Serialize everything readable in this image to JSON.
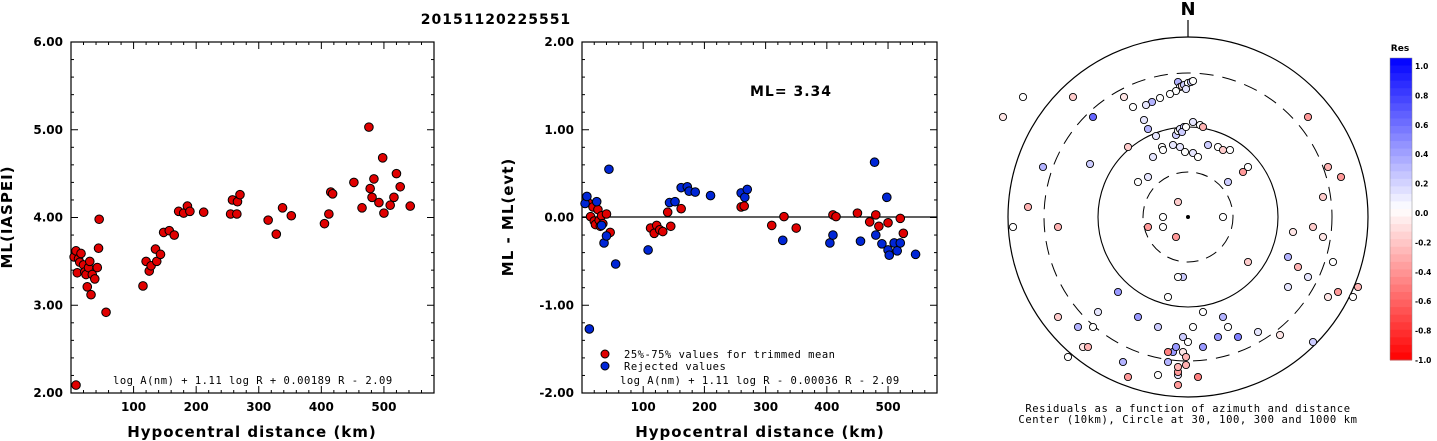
{
  "event_id": "20151120225551",
  "chart_data": [
    {
      "type": "scatter",
      "ylabel": "ML(IASPEI)",
      "xlabel": "Hypocentral distance (km)",
      "xlim": [
        0,
        580
      ],
      "ylim": [
        2.0,
        6.0
      ],
      "xticks": [
        100,
        200,
        300,
        400,
        500
      ],
      "yticks": [
        "2.00",
        "3.00",
        "4.00",
        "5.00",
        "6.00"
      ],
      "formula": "log A(nm) + 1.11 log R + 0.00189 R - 2.09",
      "points": [
        [
          5,
          3.55
        ],
        [
          8,
          3.62
        ],
        [
          10,
          3.37
        ],
        [
          12,
          3.53
        ],
        [
          14,
          3.49
        ],
        [
          16,
          3.59
        ],
        [
          20,
          3.46
        ],
        [
          22,
          3.38
        ],
        [
          24,
          3.35
        ],
        [
          26,
          3.21
        ],
        [
          28,
          3.43
        ],
        [
          30,
          3.5
        ],
        [
          32,
          3.12
        ],
        [
          34,
          3.35
        ],
        [
          38,
          3.3
        ],
        [
          42,
          3.43
        ],
        [
          44,
          3.65
        ],
        [
          45,
          3.98
        ],
        [
          56,
          2.92
        ],
        [
          8,
          2.09
        ],
        [
          115,
          3.22
        ],
        [
          120,
          3.5
        ],
        [
          125,
          3.39
        ],
        [
          128,
          3.45
        ],
        [
          135,
          3.64
        ],
        [
          137,
          3.5
        ],
        [
          143,
          3.58
        ],
        [
          148,
          3.83
        ],
        [
          157,
          3.85
        ],
        [
          165,
          3.8
        ],
        [
          172,
          4.07
        ],
        [
          180,
          4.05
        ],
        [
          186,
          4.13
        ],
        [
          190,
          4.07
        ],
        [
          212,
          4.06
        ],
        [
          255,
          4.04
        ],
        [
          258,
          4.2
        ],
        [
          265,
          4.04
        ],
        [
          266,
          4.18
        ],
        [
          270,
          4.26
        ],
        [
          315,
          3.97
        ],
        [
          328,
          3.81
        ],
        [
          338,
          4.11
        ],
        [
          352,
          4.02
        ],
        [
          405,
          3.93
        ],
        [
          412,
          4.04
        ],
        [
          415,
          4.29
        ],
        [
          418,
          4.27
        ],
        [
          452,
          4.4
        ],
        [
          465,
          4.11
        ],
        [
          476,
          5.03
        ],
        [
          478,
          4.33
        ],
        [
          481,
          4.23
        ],
        [
          484,
          4.44
        ],
        [
          492,
          4.17
        ],
        [
          498,
          4.68
        ],
        [
          500,
          4.05
        ],
        [
          510,
          4.14
        ],
        [
          516,
          4.23
        ],
        [
          520,
          4.5
        ],
        [
          526,
          4.35
        ],
        [
          542,
          4.13
        ]
      ]
    },
    {
      "type": "scatter",
      "ylabel": "ML - ML(evt)",
      "xlabel": "Hypocentral distance (km)",
      "xlim": [
        0,
        580
      ],
      "ylim": [
        -2.0,
        2.0
      ],
      "xticks": [
        100,
        200,
        300,
        400,
        500
      ],
      "yticks": [
        "-2.00",
        "-1.00",
        "0.00",
        "1.00",
        "2.00"
      ],
      "ml_label": "ML= 3.34",
      "legend": [
        "25%-75% values for trimmed mean",
        "Rejected values"
      ],
      "formula": "log A(nm) + 1.11 log R - 0.00036 R - 2.09",
      "accepted": [
        [
          10,
          0.17
        ],
        [
          14,
          0.01
        ],
        [
          18,
          0.12
        ],
        [
          20,
          -0.04
        ],
        [
          22,
          -0.08
        ],
        [
          26,
          0.09
        ],
        [
          28,
          -0.03
        ],
        [
          30,
          -0.1
        ],
        [
          32,
          0.02
        ],
        [
          34,
          -0.07
        ],
        [
          40,
          0.04
        ],
        [
          46,
          -0.17
        ],
        [
          112,
          -0.12
        ],
        [
          118,
          -0.18
        ],
        [
          122,
          -0.09
        ],
        [
          127,
          -0.14
        ],
        [
          132,
          -0.16
        ],
        [
          140,
          0.06
        ],
        [
          145,
          -0.1
        ],
        [
          162,
          0.1
        ],
        [
          260,
          0.12
        ],
        [
          265,
          0.13
        ],
        [
          310,
          -0.09
        ],
        [
          330,
          0.01
        ],
        [
          350,
          -0.12
        ],
        [
          410,
          0.03
        ],
        [
          415,
          0.01
        ],
        [
          450,
          0.05
        ],
        [
          470,
          -0.05
        ],
        [
          480,
          0.03
        ],
        [
          485,
          -0.1
        ],
        [
          500,
          -0.06
        ],
        [
          520,
          -0.01
        ],
        [
          525,
          -0.18
        ]
      ],
      "rejected": [
        [
          5,
          0.16
        ],
        [
          8,
          0.24
        ],
        [
          12,
          -1.27
        ],
        [
          24,
          0.18
        ],
        [
          32,
          -0.09
        ],
        [
          36,
          -0.29
        ],
        [
          40,
          -0.21
        ],
        [
          44,
          0.55
        ],
        [
          55,
          -0.53
        ],
        [
          108,
          -0.37
        ],
        [
          143,
          0.17
        ],
        [
          152,
          0.18
        ],
        [
          162,
          0.34
        ],
        [
          172,
          0.35
        ],
        [
          175,
          0.3
        ],
        [
          185,
          0.29
        ],
        [
          210,
          0.25
        ],
        [
          260,
          0.28
        ],
        [
          266,
          0.23
        ],
        [
          270,
          0.32
        ],
        [
          328,
          -0.26
        ],
        [
          405,
          -0.29
        ],
        [
          410,
          -0.2
        ],
        [
          455,
          -0.27
        ],
        [
          478,
          0.63
        ],
        [
          480,
          -0.2
        ],
        [
          490,
          -0.3
        ],
        [
          498,
          0.23
        ],
        [
          500,
          -0.37
        ],
        [
          510,
          -0.29
        ],
        [
          515,
          -0.38
        ],
        [
          520,
          -0.29
        ],
        [
          545,
          -0.42
        ],
        [
          502,
          -0.43
        ]
      ]
    },
    {
      "type": "scatter",
      "north_label": "N",
      "colorbar_title": "Res",
      "colorbar_ticks": [
        "1.0",
        "0.8",
        "0.6",
        "0.4",
        "0.2",
        "0.0",
        "-0.2",
        "-0.4",
        "-0.6",
        "-0.8",
        "-1.0"
      ],
      "caption_line1": "Residuals as a function of azimuth and distance",
      "caption_line2": "Center (10km), Circle at 30, 100, 300 and 1000 km",
      "stations": [
        [
          -10,
          135,
          0.3
        ],
        [
          -8,
          130,
          0.0
        ],
        [
          -6,
          131,
          -0.1
        ],
        [
          -4,
          132,
          0.2
        ],
        [
          0,
          134,
          0.0
        ],
        [
          3,
          135,
          0.2
        ],
        [
          5,
          136,
          0.0
        ],
        [
          -2,
          128,
          0.1
        ],
        [
          -12,
          126,
          0.0
        ],
        [
          -18,
          123,
          0.0
        ],
        [
          -28,
          119,
          0.0
        ],
        [
          -36,
          115,
          0.3
        ],
        [
          -42,
          112,
          0.1
        ],
        [
          -55,
          110,
          0.0
        ],
        [
          -64,
          120,
          -0.1
        ],
        [
          -44,
          97,
          0.1
        ],
        [
          -40,
          88,
          0.3
        ],
        [
          -32,
          81,
          0.1
        ],
        [
          -26,
          70,
          0.0
        ],
        [
          -25,
          67,
          0.0
        ],
        [
          -15,
          72,
          0.1
        ],
        [
          -8,
          70,
          0.1
        ],
        [
          -3,
          65,
          0.0
        ],
        [
          5,
          64,
          0.1
        ],
        [
          10,
          60,
          0.0
        ],
        [
          20,
          72,
          0.2
        ],
        [
          30,
          70,
          0.0
        ],
        [
          35,
          67,
          -0.2
        ],
        [
          42,
          67,
          0.0
        ],
        [
          -12,
          82,
          0.2
        ],
        [
          -8,
          86,
          0.1
        ],
        [
          -10,
          86,
          0.0
        ],
        [
          -8,
          88,
          0.1
        ],
        [
          -4,
          90,
          0.2
        ],
        [
          -6,
          85,
          0.2
        ],
        [
          -2,
          90,
          0.0
        ],
        [
          12,
          92,
          0.0
        ],
        [
          5,
          95,
          0.1
        ],
        [
          15,
          90,
          -0.3
        ],
        [
          -95,
          100,
          0.6
        ],
        [
          -185,
          100,
          -0.1
        ],
        [
          -165,
          120,
          0.0
        ],
        [
          -115,
          120,
          -0.2
        ],
        [
          -50,
          35,
          0.0
        ],
        [
          -98,
          53,
          0.2
        ],
        [
          -145,
          50,
          0.3
        ],
        [
          -160,
          10,
          -0.3
        ],
        [
          -130,
          -10,
          -0.3
        ],
        [
          -25,
          -10,
          0.0
        ],
        [
          -40,
          -10,
          -0.4
        ],
        [
          -5,
          -60,
          0.2
        ],
        [
          -10,
          -60,
          0.0
        ],
        [
          -20,
          -80,
          0.0
        ],
        [
          -5,
          -120,
          0.2
        ],
        [
          5,
          -110,
          0.0
        ],
        [
          15,
          -95,
          0.0
        ],
        [
          -50,
          -100,
          0.4
        ],
        [
          -70,
          -75,
          0.4
        ],
        [
          -30,
          -110,
          0.2
        ],
        [
          15,
          -130,
          0.4
        ],
        [
          35,
          -100,
          0.3
        ],
        [
          40,
          -110,
          0.0
        ],
        [
          30,
          -120,
          0.4
        ],
        [
          50,
          -120,
          0.5
        ],
        [
          70,
          -115,
          0.1
        ],
        [
          92,
          -118,
          -0.1
        ],
        [
          125,
          -125,
          0.2
        ],
        [
          170,
          -70,
          -0.3
        ],
        [
          150,
          -75,
          -0.4
        ],
        [
          165,
          -80,
          0.0
        ],
        [
          145,
          -45,
          0.0
        ],
        [
          135,
          -20,
          -0.1
        ],
        [
          125,
          -10,
          -0.2
        ],
        [
          105,
          -15,
          -0.1
        ],
        [
          100,
          -40,
          0.3
        ],
        [
          110,
          -50,
          -0.3
        ],
        [
          120,
          -60,
          0.1
        ],
        [
          140,
          -80,
          -0.1
        ],
        [
          60,
          -45,
          -0.2
        ],
        [
          100,
          -70,
          0.1
        ],
        [
          135,
          20,
          -0.2
        ],
        [
          140,
          50,
          -0.3
        ],
        [
          153,
          40,
          -0.4
        ],
        [
          120,
          100,
          -0.4
        ],
        [
          40,
          35,
          0.2
        ],
        [
          55,
          45,
          -0.4
        ],
        [
          60,
          50,
          0.0
        ],
        [
          35,
          0,
          0.0
        ],
        [
          -10,
          15,
          -0.2
        ],
        [
          -12,
          -20,
          -0.4
        ],
        [
          -25,
          0,
          0.0
        ],
        [
          -40,
          40,
          0.1
        ],
        [
          -35,
          60,
          0.1
        ],
        [
          -60,
          70,
          -0.2
        ],
        [
          -175,
          -10,
          0.0
        ],
        [
          -105,
          -130,
          -0.1
        ],
        [
          -65,
          -145,
          0.3
        ],
        [
          -5,
          -135,
          -0.1
        ],
        [
          -10,
          -158,
          0.1
        ],
        [
          -30,
          -158,
          0.0
        ],
        [
          -2,
          -140,
          -0.3
        ],
        [
          -10,
          -155,
          -0.4
        ],
        [
          -90,
          -95,
          0.1
        ],
        [
          -110,
          -110,
          0.3
        ],
        [
          -130,
          -100,
          -0.2
        ],
        [
          -95,
          -110,
          0.0
        ],
        [
          -20,
          -145,
          0.3
        ],
        [
          -15,
          -135,
          0.4
        ],
        [
          0,
          -125,
          0.0
        ],
        [
          -60,
          -160,
          -0.4
        ],
        [
          -120,
          -140,
          0.0
        ],
        [
          -100,
          -130,
          -0.3
        ],
        [
          10,
          -160,
          -0.5
        ],
        [
          -10,
          -150,
          -0.3
        ],
        [
          -20,
          -135,
          -0.5
        ],
        [
          -12,
          -130,
          0.4
        ],
        [
          -2,
          -148,
          -0.3
        ],
        [
          -10,
          -168,
          -0.4
        ]
      ]
    }
  ]
}
